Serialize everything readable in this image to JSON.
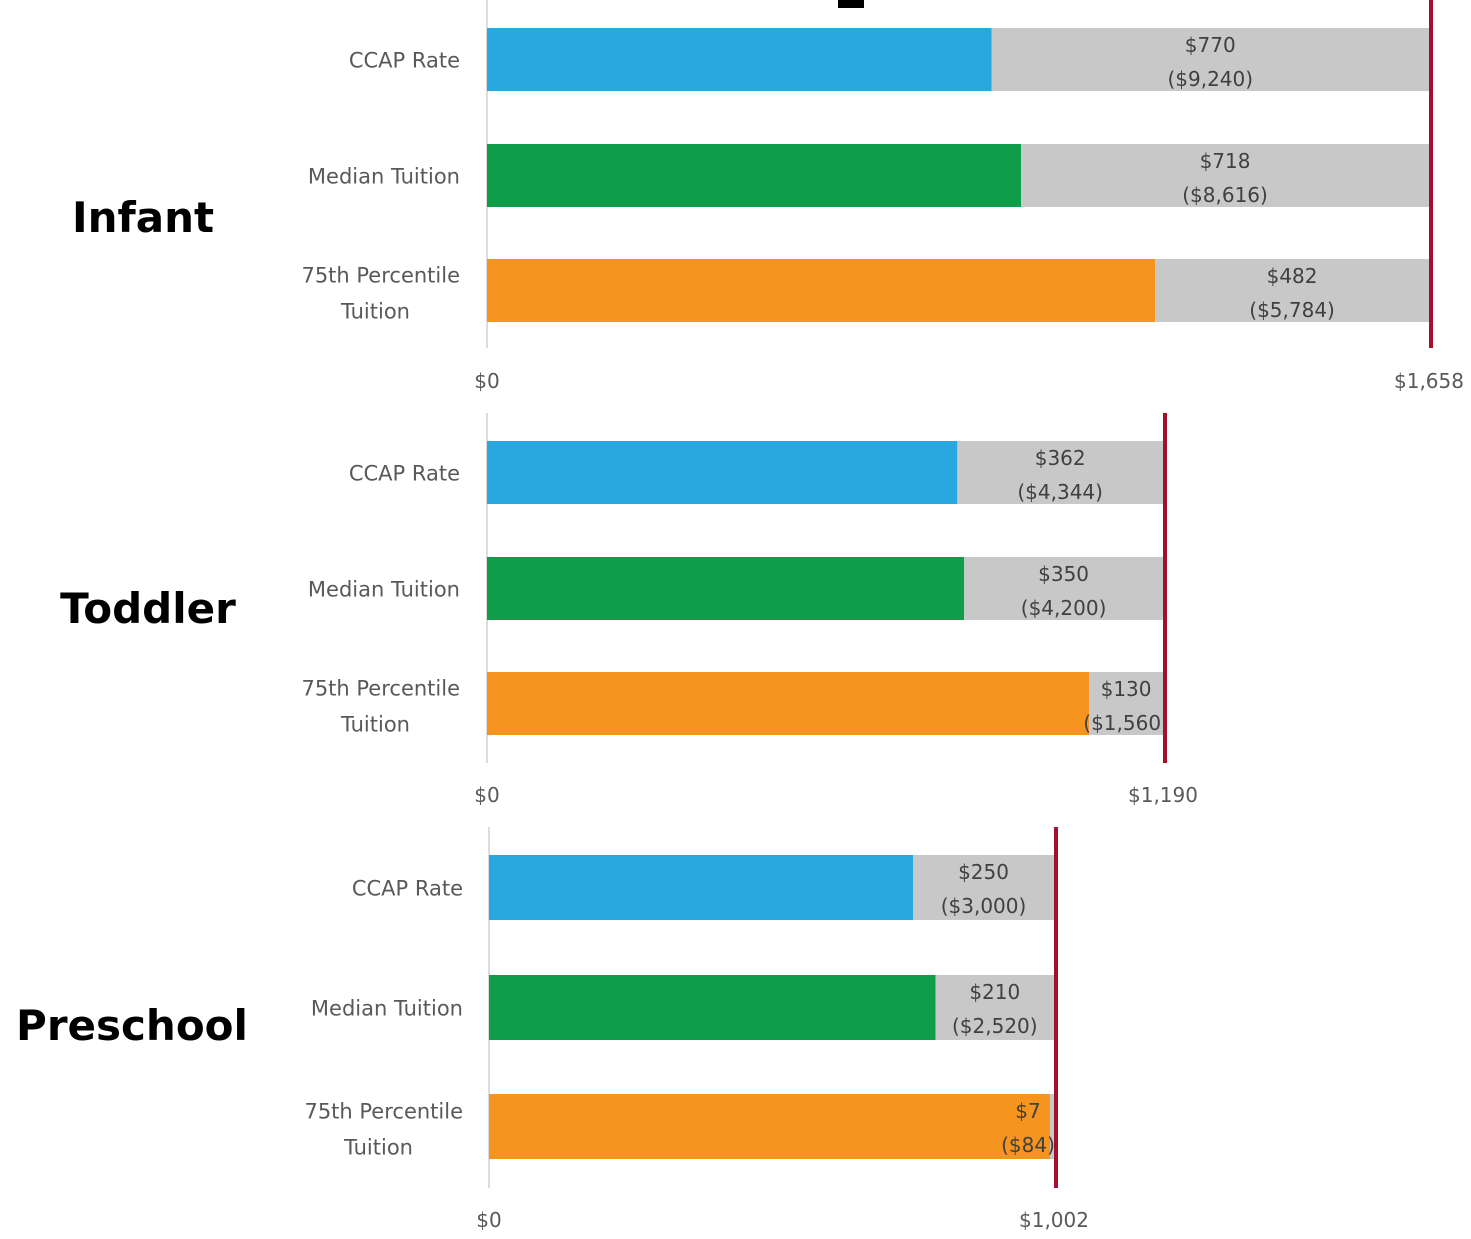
{
  "colors": {
    "ccap": "#29a8e0",
    "median": "#0f9d4a",
    "p75": "#f5941e",
    "gap": "#c8c8c8",
    "limit_line": "#a50e2d",
    "axis": "#d0d0d0"
  },
  "chart_data": [
    {
      "type": "bar",
      "orientation": "horizontal",
      "stacked": true,
      "title": "Infant",
      "categories": [
        "CCAP Rate",
        "Median Tuition",
        "75th Percentile\nTuition"
      ],
      "series": [
        {
          "values": [
            888,
            940,
            1176
          ],
          "color": "ccap/median/p75"
        },
        {
          "values": [
            770,
            718,
            482
          ],
          "color": "gap"
        }
      ],
      "gap_labels": [
        "$770",
        "$718",
        "$482"
      ],
      "gap_annual_labels": [
        "($9,240)",
        "($8,616)",
        "($5,784)"
      ],
      "reference_line": 1658,
      "xlim": [
        0,
        1658
      ],
      "x_tick_labels": [
        "$0",
        "$1,658"
      ]
    },
    {
      "type": "bar",
      "orientation": "horizontal",
      "stacked": true,
      "title": "Toddler",
      "categories": [
        "CCAP Rate",
        "Median Tuition",
        "75th Percentile\nTuition"
      ],
      "series": [
        {
          "values": [
            828,
            840,
            1060
          ],
          "color": "ccap/median/p75"
        },
        {
          "values": [
            362,
            350,
            130
          ],
          "color": "gap"
        }
      ],
      "gap_labels": [
        "$362",
        "$350",
        "$130"
      ],
      "gap_annual_labels": [
        "($4,344)",
        "($4,200)",
        "($1,560)"
      ],
      "reference_line": 1190,
      "xlim": [
        0,
        1190
      ],
      "x_tick_labels": [
        "$0",
        "$1,190"
      ]
    },
    {
      "type": "bar",
      "orientation": "horizontal",
      "stacked": true,
      "title": "Preschool",
      "categories": [
        "CCAP Rate",
        "Median Tuition",
        "75th Percentile\nTuition"
      ],
      "series": [
        {
          "values": [
            752,
            792,
            995
          ],
          "color": "ccap/median/p75"
        },
        {
          "values": [
            250,
            210,
            7
          ],
          "color": "gap"
        }
      ],
      "gap_labels": [
        "$250",
        "$210",
        "$7"
      ],
      "gap_annual_labels": [
        "($3,000)",
        "($2,520)",
        "($84)"
      ],
      "reference_line": 1002,
      "xlim": [
        0,
        1002
      ],
      "x_tick_labels": [
        "$0",
        "$1,002"
      ]
    }
  ]
}
